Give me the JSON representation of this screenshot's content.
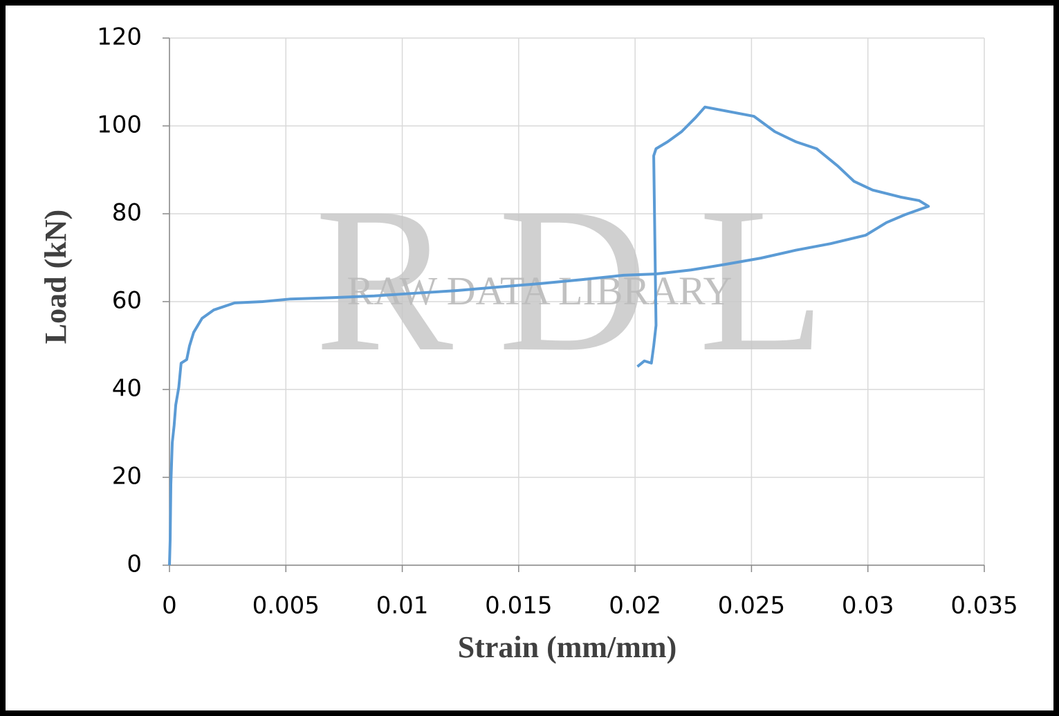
{
  "chart_data": {
    "type": "line",
    "xlabel": "Strain (mm/mm)",
    "ylabel": "Load (kN)",
    "watermark_letters": [
      "R",
      "D",
      "L"
    ],
    "watermark_text": "RAW DATA LIBRARY",
    "xlim": [
      0,
      0.035
    ],
    "xticks": [
      0,
      0.005,
      0.01,
      0.015,
      0.02,
      0.025,
      0.03,
      0.035
    ],
    "ylim": [
      0,
      120
    ],
    "yticks": [
      0,
      20,
      40,
      60,
      80,
      100,
      120
    ],
    "grid": true,
    "series": [
      {
        "color": "#5b9bd5",
        "x": [
          0,
          3e-05,
          6e-05,
          0.00012,
          0.0002,
          0.00027,
          0.0004,
          0.0005,
          0.00074,
          0.00086,
          0.00104,
          0.0014,
          0.0019,
          0.0028,
          0.004,
          0.0052,
          0.007,
          0.0088,
          0.0105,
          0.0123,
          0.0141,
          0.0159,
          0.0177,
          0.0195,
          0.0209,
          0.0224,
          0.0239,
          0.0254,
          0.0269,
          0.0284,
          0.0299,
          0.0308,
          0.0316,
          0.0326,
          0.0322,
          0.0314,
          0.0302,
          0.0294,
          0.0287,
          0.0278,
          0.0269,
          0.026,
          0.0251,
          0.0242,
          0.023,
          0.0226,
          0.022,
          0.0214,
          0.0209,
          0.0208,
          0.0209,
          0.0208,
          0.0207,
          0.0204,
          0.0201
        ],
        "values": [
          0,
          5.8,
          18.4,
          27.9,
          31.8,
          36.5,
          40.5,
          46,
          46.8,
          49.9,
          53,
          56.2,
          58.1,
          59.7,
          60,
          60.6,
          60.9,
          61.3,
          61.9,
          62.5,
          63.3,
          64.1,
          65,
          66,
          66.3,
          67.2,
          68.5,
          69.9,
          71.7,
          73.2,
          75.1,
          78,
          79.8,
          81.7,
          83,
          83.8,
          85.4,
          87.4,
          90.9,
          94.8,
          96.4,
          98.7,
          102.2,
          103.1,
          104.3,
          101.9,
          98.7,
          96.4,
          94.8,
          93.2,
          54.6,
          49.9,
          46,
          46.5,
          45.2
        ]
      }
    ]
  }
}
